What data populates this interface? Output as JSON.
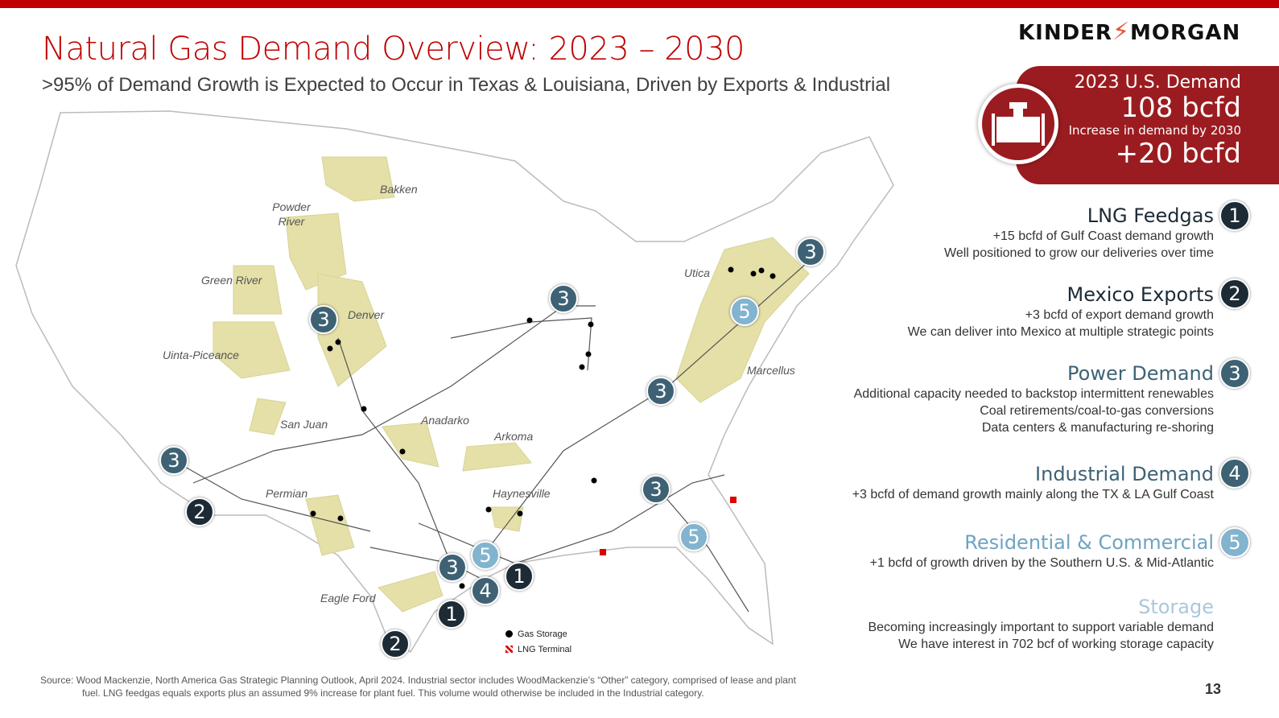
{
  "header": {
    "title": "Natural Gas Demand Overview: 2023 – 2030",
    "subtitle": ">95% of Demand Growth is Expected to Occur in Texas & Louisiana, Driven by Exports & Industrial",
    "logo": "KINDER MORGAN"
  },
  "demand_box": {
    "label1": "2023 U.S. Demand",
    "value1": "108 bcfd",
    "label2": "Increase in demand by 2030",
    "value2": "+20 bcfd",
    "icon": "pipe-tee-icon"
  },
  "map": {
    "basins": [
      "Bakken",
      "Powder River",
      "Green River",
      "Denver",
      "Uinta-Piceance",
      "San Juan",
      "Anadarko",
      "Arkoma",
      "Permian",
      "Haynesville",
      "Eagle Ford",
      "Utica",
      "Marcellus"
    ],
    "markers": [
      "3",
      "3",
      "3",
      "5",
      "3",
      "3",
      "2",
      "3",
      "5",
      "5",
      "3",
      "1",
      "4",
      "1",
      "2"
    ],
    "legend": {
      "storage": "Gas Storage",
      "lng": "LNG Terminal"
    }
  },
  "categories": [
    {
      "num": "1",
      "title": "LNG Feedgas",
      "color": "#1d2b36",
      "lines": [
        "+15 bcfd of Gulf Coast demand growth",
        "Well positioned to grow our deliveries over time"
      ]
    },
    {
      "num": "2",
      "title": "Mexico Exports",
      "color": "#1d2b36",
      "lines": [
        "+3 bcfd of export demand growth",
        "We can deliver into Mexico at multiple strategic points"
      ]
    },
    {
      "num": "3",
      "title": "Power Demand",
      "color": "#3e6274",
      "lines": [
        "Additional capacity needed to backstop intermittent renewables",
        "Coal retirements/coal-to-gas conversions",
        "Data centers & manufacturing re-shoring"
      ]
    },
    {
      "num": "4",
      "title": "Industrial Demand",
      "color": "#3e6274",
      "lines": [
        "+3 bcfd of demand growth mainly along the TX & LA Gulf Coast"
      ]
    },
    {
      "num": "5",
      "title": "Residential & Commercial",
      "color": "#82b4cf",
      "lines": [
        "+1 bcfd of growth driven by the Southern U.S. & Mid-Atlantic"
      ]
    },
    {
      "num": "",
      "title": "Storage",
      "color": "#a9c8da",
      "lines": [
        "Becoming increasingly important to support variable demand",
        "We have interest in 702 bcf of working storage capacity"
      ]
    }
  ],
  "footer": {
    "source1": "Source: Wood Mackenzie, North America Gas Strategic Planning Outlook, April 2024. Industrial sector includes WoodMackenzie’s “Other” category, comprised of lease and plant",
    "source2": "fuel. LNG feedgas equals exports plus an assumed 9% increase for plant fuel. This volume would otherwise be included in the Industrial category.",
    "page": "13"
  }
}
